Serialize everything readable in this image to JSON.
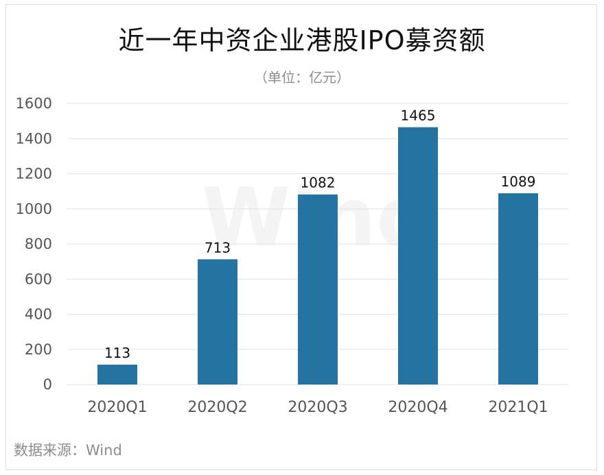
{
  "title": "近一年中资企业港股IPO募资额",
  "unit": "（单位：亿元）",
  "source": "数据来源：Wind",
  "watermark": "Wind",
  "colors": {
    "bar": "#2473a0",
    "grid": "#e6e6e6"
  },
  "chart_data": {
    "type": "bar",
    "title": "近一年中资企业港股IPO募资额",
    "subtitle": "（单位：亿元）",
    "categories": [
      "2020Q1",
      "2020Q2",
      "2020Q3",
      "2020Q4",
      "2021Q1"
    ],
    "values": [
      113,
      713,
      1082,
      1465,
      1089
    ],
    "ylim": [
      0,
      1600
    ],
    "yticks": [
      0,
      200,
      400,
      600,
      800,
      1000,
      1200,
      1400,
      1600
    ],
    "grid": true,
    "legend": "none",
    "data_labels": true
  }
}
